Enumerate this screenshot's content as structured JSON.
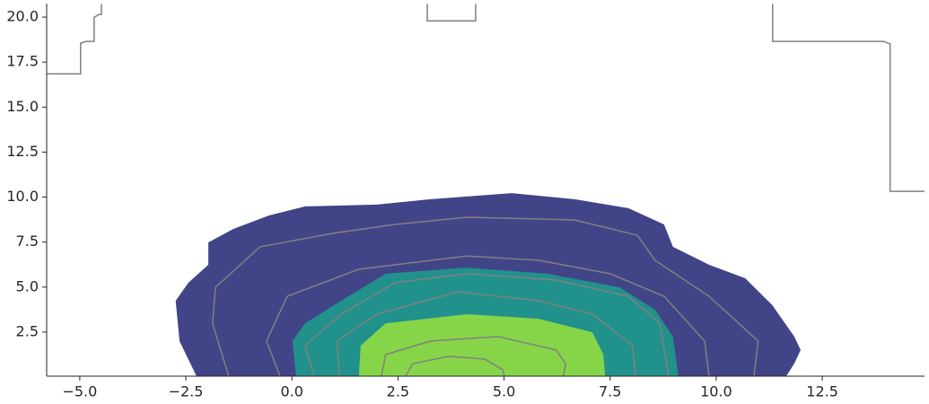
{
  "chart_data": {
    "type": "contour",
    "xlim": [
      -5.78,
      14.91
    ],
    "ylim": [
      0.05,
      20.75
    ],
    "xticks": [
      {
        "value": -5,
        "label": "−5.0"
      },
      {
        "value": -2.5,
        "label": "−2.5"
      },
      {
        "value": 0,
        "label": "0.0"
      },
      2.5,
      {
        "value": 5,
        "label": "5.0"
      },
      7.5,
      {
        "value": 10,
        "label": "10.0"
      },
      12.5
    ],
    "yticks": [
      2.5,
      {
        "value": 5,
        "label": "5.0"
      },
      7.5,
      {
        "value": 10,
        "label": "10.0"
      },
      12.5,
      {
        "value": 15,
        "label": "15.0"
      },
      17.5,
      {
        "value": 20,
        "label": "20.0"
      }
    ],
    "regions": [
      {
        "color": "#414487",
        "x": [
          -2.25,
          -2.65,
          -2.74,
          -2.44,
          -1.97,
          -1.97,
          -1.38,
          -0.54,
          0.31,
          2.0,
          3.27,
          5.18,
          6.66,
          7.93,
          8.77,
          8.98,
          9.83,
          10.68,
          11.32,
          11.84,
          11.99,
          11.84,
          11.65
        ],
        "y": [
          0.05,
          2.0,
          4.24,
          5.24,
          6.24,
          7.48,
          8.23,
          8.98,
          9.48,
          9.58,
          9.88,
          10.22,
          9.88,
          9.38,
          8.48,
          7.24,
          6.24,
          5.49,
          4.0,
          2.25,
          1.5,
          0.75,
          0.05
        ]
      },
      {
        "color": "#21918c",
        "x": [
          0.1,
          0.01,
          0.31,
          1.16,
          2.21,
          4.12,
          6.02,
          7.72,
          8.56,
          8.98,
          9.11
        ],
        "y": [
          0.05,
          2.0,
          2.99,
          4.24,
          5.74,
          6.08,
          5.74,
          4.99,
          3.74,
          2.25,
          0.05
        ]
      },
      {
        "color": "#86d549",
        "x": [
          1.58,
          1.62,
          2.21,
          4.12,
          5.81,
          7.08,
          7.34,
          7.38
        ],
        "y": [
          0.05,
          1.75,
          2.99,
          3.49,
          3.24,
          2.49,
          1.25,
          0.05
        ]
      }
    ],
    "lines": [
      {
        "color": "#808080",
        "x": [
          -1.49,
          -1.87,
          -1.8,
          -0.75,
          0.95,
          2.43,
          4.12,
          6.66,
          8.14,
          8.56,
          9.83,
          10.99,
          10.89
        ],
        "y": [
          0.05,
          2.99,
          4.99,
          7.24,
          7.98,
          8.48,
          8.88,
          8.73,
          7.88,
          6.49,
          4.49,
          2.0,
          0.05
        ]
      },
      {
        "color": "#808080",
        "x": [
          -0.28,
          -0.6,
          -0.11,
          1.58,
          4.12,
          5.81,
          7.5,
          8.77,
          9.73,
          9.83
        ],
        "y": [
          0.05,
          2.0,
          4.49,
          5.99,
          6.73,
          6.49,
          5.74,
          4.49,
          2.0,
          0.05
        ]
      },
      {
        "color": "#808080",
        "x": [
          0.52,
          0.31,
          1.16,
          2.43,
          4.12,
          6.23,
          7.93,
          8.67,
          8.88
        ],
        "y": [
          0.05,
          1.75,
          3.49,
          5.24,
          5.74,
          5.39,
          4.49,
          2.99,
          0.05
        ]
      },
      {
        "color": "#808080",
        "x": [
          1.12,
          1.06,
          2.0,
          3.91,
          5.81,
          7.08,
          8.03,
          8.1
        ],
        "y": [
          0.05,
          2.0,
          3.49,
          4.74,
          4.24,
          3.49,
          1.75,
          0.05
        ]
      },
      {
        "color": "#808080",
        "x": [
          2.11,
          2.21,
          3.27,
          4.86,
          6.23,
          6.45,
          6.4
        ],
        "y": [
          0.05,
          1.25,
          2.0,
          2.25,
          1.5,
          0.75,
          0.05
        ]
      },
      {
        "color": "#808080",
        "x": [
          2.68,
          2.85,
          3.7,
          4.55,
          4.97,
          5.01
        ],
        "y": [
          0.05,
          0.75,
          1.15,
          1.0,
          0.4,
          0.05
        ]
      },
      {
        "color": "#808080",
        "x": [
          -5.78,
          -4.98,
          -4.98,
          -4.85,
          -4.66,
          -4.66,
          -4.55,
          -4.49,
          -4.49,
          null,
          3.19,
          3.19,
          4.33,
          4.33,
          null,
          11.33,
          11.33,
          13.95,
          14.1,
          14.1,
          14.91
        ],
        "y": [
          16.85,
          16.85,
          18.55,
          18.65,
          18.65,
          19.99,
          20.14,
          20.14,
          20.74,
          null,
          20.74,
          19.79,
          19.79,
          20.74,
          null,
          20.74,
          18.65,
          18.65,
          18.5,
          10.32,
          10.32
        ]
      }
    ]
  }
}
